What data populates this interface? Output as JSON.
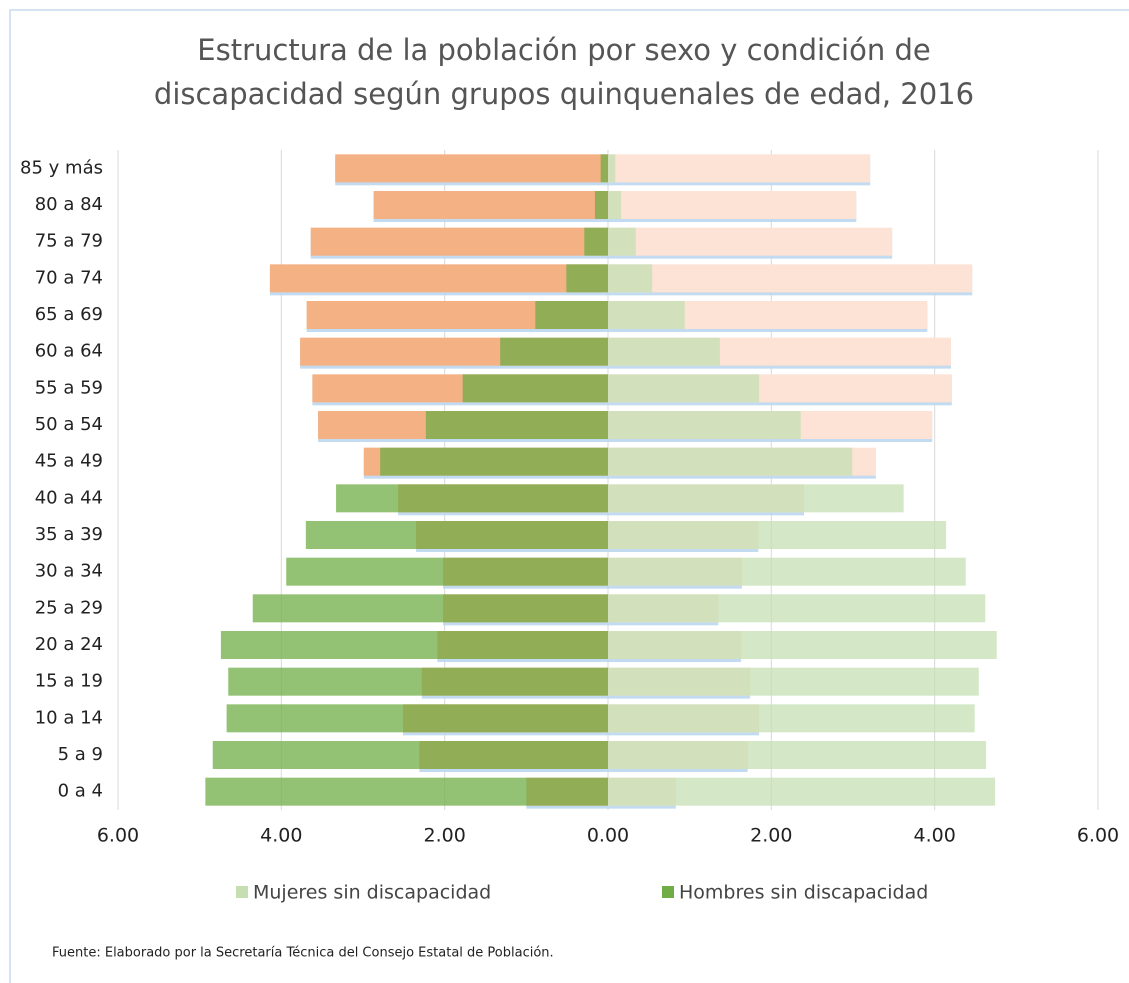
{
  "chart_data": {
    "type": "pyramid",
    "title": [
      "Estructura de la población por sexo y condición de",
      "discapacidad según grupos quinquenales de edad, 2016"
    ],
    "source": "Fuente: Elaborado por la Secretaría Técnica del Consejo Estatal de Población.",
    "categories": [
      "85 y más",
      "80 a 84",
      "75 a 79",
      "70 a 74",
      "65 a 69",
      "60 a 64",
      "55 a 59",
      "50 a 54",
      "45 a 49",
      "40 a 44",
      "35 a 39",
      "30 a 34",
      "25 a 29",
      "20 a 24",
      "15 a 19",
      "10 a 14",
      "5 a 9",
      "0 a 4"
    ],
    "xlim": [
      -6,
      6
    ],
    "xticks": [
      {
        "value": -6,
        "label": "6.00"
      },
      {
        "value": -4,
        "label": "4.00"
      },
      {
        "value": -2,
        "label": "2.00"
      },
      {
        "value": 0,
        "label": "0.00"
      },
      {
        "value": 2,
        "label": "2.00"
      },
      {
        "value": 4,
        "label": "4.00"
      },
      {
        "value": 6,
        "label": "6.00"
      }
    ],
    "grid": true,
    "background_series": [
      {
        "color": "#f4b183",
        "values": [
          -3.34,
          -2.87,
          -3.64,
          -4.14,
          -3.69,
          -3.77,
          -3.62,
          -3.55,
          -2.99,
          -2.57,
          -2.35,
          -2.02,
          -2.02,
          -2.09,
          -2.28,
          -2.51,
          -2.31,
          -1.0
        ]
      },
      {
        "color": "#fce3d6",
        "values": [
          3.21,
          3.04,
          3.48,
          4.46,
          3.91,
          4.2,
          4.21,
          3.97,
          3.28,
          2.4,
          1.84,
          1.64,
          1.35,
          1.63,
          1.74,
          1.85,
          1.71,
          0.83
        ]
      }
    ],
    "series": [
      {
        "name": "Mujeres sin discapacidad",
        "color": "#c5dfb3",
        "values": [
          0.09,
          0.16,
          0.34,
          0.54,
          0.94,
          1.37,
          1.85,
          2.36,
          2.99,
          3.62,
          4.14,
          4.38,
          4.62,
          4.76,
          4.54,
          4.49,
          4.63,
          4.74
        ]
      },
      {
        "name": "Hombres sin discapacidad",
        "color": "#70ad47",
        "values": [
          -0.09,
          -0.16,
          -0.29,
          -0.51,
          -0.89,
          -1.32,
          -1.78,
          -2.23,
          -2.79,
          -3.33,
          -3.7,
          -3.94,
          -4.35,
          -4.74,
          -4.65,
          -4.67,
          -4.84,
          -4.93
        ]
      }
    ]
  }
}
